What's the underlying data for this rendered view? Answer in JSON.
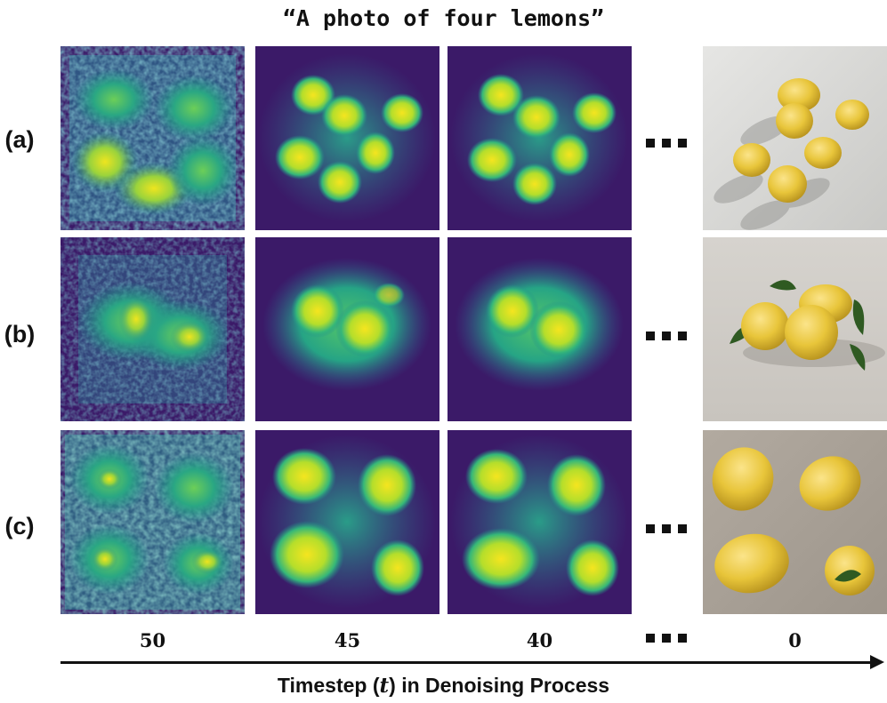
{
  "title": "“A photo of four lemons”",
  "rows": [
    {
      "label": "(a)"
    },
    {
      "label": "(b)"
    },
    {
      "label": "(c)"
    }
  ],
  "timesteps": [
    "50",
    "45",
    "40",
    "0"
  ],
  "ellipsis_glyph": "...",
  "axis": {
    "label_prefix": "Timestep (",
    "label_var": "t",
    "label_suffix": ") in Denoising Process"
  },
  "colors": {
    "heatmap_low": "#3b1a68",
    "heatmap_mid": "#2f8d8b",
    "heatmap_high": "#eee51f",
    "lemon": "#e8c53a",
    "leaf": "#2f5a22",
    "photo_bg_a": "#d9d9d7",
    "photo_bg_b": "#cfccc6",
    "photo_bg_c": "#aaa198"
  }
}
